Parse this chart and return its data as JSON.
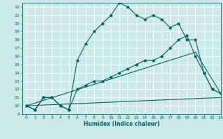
{
  "xlabel": "Humidex (Indice chaleur)",
  "bg_color": "#cce8e8",
  "grid_color": "#ffffff",
  "line_color": "#006666",
  "ylim": [
    9,
    22.5
  ],
  "xlim": [
    -0.5,
    23
  ],
  "yticks": [
    9,
    10,
    11,
    12,
    13,
    14,
    15,
    16,
    17,
    18,
    19,
    20,
    21,
    22
  ],
  "xticks": [
    0,
    1,
    2,
    3,
    4,
    5,
    6,
    7,
    8,
    9,
    10,
    11,
    12,
    13,
    14,
    15,
    16,
    17,
    18,
    19,
    20,
    21,
    22,
    23
  ],
  "series1_x": [
    0,
    1,
    2,
    3,
    4,
    5,
    6,
    7,
    8,
    9,
    10,
    11,
    12,
    13,
    14,
    15,
    16,
    17,
    18,
    19,
    20,
    21,
    22,
    23
  ],
  "series1_y": [
    10,
    9.5,
    11,
    11,
    10,
    9.5,
    15.5,
    17.5,
    19,
    20,
    21,
    22.5,
    22,
    21,
    20.5,
    21,
    20.5,
    19.5,
    20,
    18,
    18,
    14,
    12,
    11.5
  ],
  "series2_x": [
    0,
    1,
    2,
    3,
    4,
    5,
    6,
    7,
    8,
    9,
    10,
    11,
    12,
    13,
    14,
    15,
    16,
    17,
    18,
    19,
    20,
    21,
    22,
    23
  ],
  "series2_y": [
    10,
    9.5,
    11,
    11,
    10,
    9.5,
    12,
    12.5,
    13,
    13,
    13.5,
    14,
    14.5,
    15,
    15.5,
    15.5,
    16,
    17,
    18,
    18.5,
    16,
    14,
    12,
    11.5
  ],
  "series3_x": [
    0,
    23
  ],
  "series3_y": [
    10,
    11
  ],
  "series4_x": [
    0,
    20,
    23
  ],
  "series4_y": [
    10,
    16.5,
    11.5
  ]
}
